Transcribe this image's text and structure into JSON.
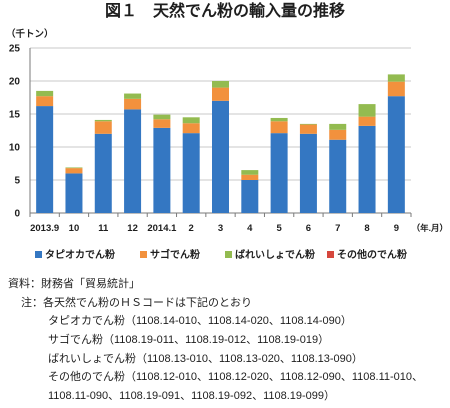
{
  "chart_data": {
    "type": "bar",
    "stacked": true,
    "title": "図１　天然でん粉の輸入量の推移",
    "ylabel": "（千トン）",
    "xlabel": "（年.月）",
    "ylim": [
      0,
      25
    ],
    "yticks": [
      0,
      5,
      10,
      15,
      20,
      25
    ],
    "grid": true,
    "legend": "bottom",
    "categories": [
      "2013.9",
      "10",
      "11",
      "12",
      "2014.1",
      "2",
      "3",
      "4",
      "5",
      "6",
      "7",
      "8",
      "9"
    ],
    "series": [
      {
        "name": "タピオカでん粉",
        "color": "#3477c2",
        "values": [
          16.2,
          6.0,
          12.0,
          15.7,
          12.9,
          12.1,
          17.0,
          5.0,
          12.1,
          12.0,
          11.1,
          13.2,
          17.7
        ]
      },
      {
        "name": "サゴでん粉",
        "color": "#f2913d",
        "values": [
          1.5,
          0.8,
          1.9,
          1.6,
          1.3,
          1.5,
          2.0,
          0.8,
          1.8,
          1.4,
          1.5,
          1.4,
          2.2
        ]
      },
      {
        "name": "ばれいしょでん粉",
        "color": "#93bb50",
        "values": [
          0.8,
          0.1,
          0.2,
          0.8,
          0.7,
          0.9,
          1.0,
          0.7,
          0.5,
          0.1,
          0.9,
          1.9,
          1.1
        ]
      },
      {
        "name": "その他のでん粉",
        "color": "#d6473d",
        "values": [
          0,
          0,
          0,
          0,
          0,
          0,
          0,
          0,
          0,
          0,
          0,
          0,
          0
        ]
      }
    ]
  },
  "notes": {
    "source": "資料：財務省「貿易統計」",
    "heading": "注：各天然でん粉のＨＳコードは下記のとおり",
    "lines": [
      "タピオカでん粉（1108.14-010、1108.14-020、1108.14-090）",
      "サゴでん粉（1108.19-011、1108.19-012、1108.19-019）",
      "ばれいしょでん粉（1108.13-010、1108.13-020、1108.13-090）",
      "その他のでん粉（1108.12-010、1108.12-020、1108.12-090、1108.11-010、",
      "1108.11-090、1108.19-091、1108.19-092、1108.19-099）"
    ]
  }
}
